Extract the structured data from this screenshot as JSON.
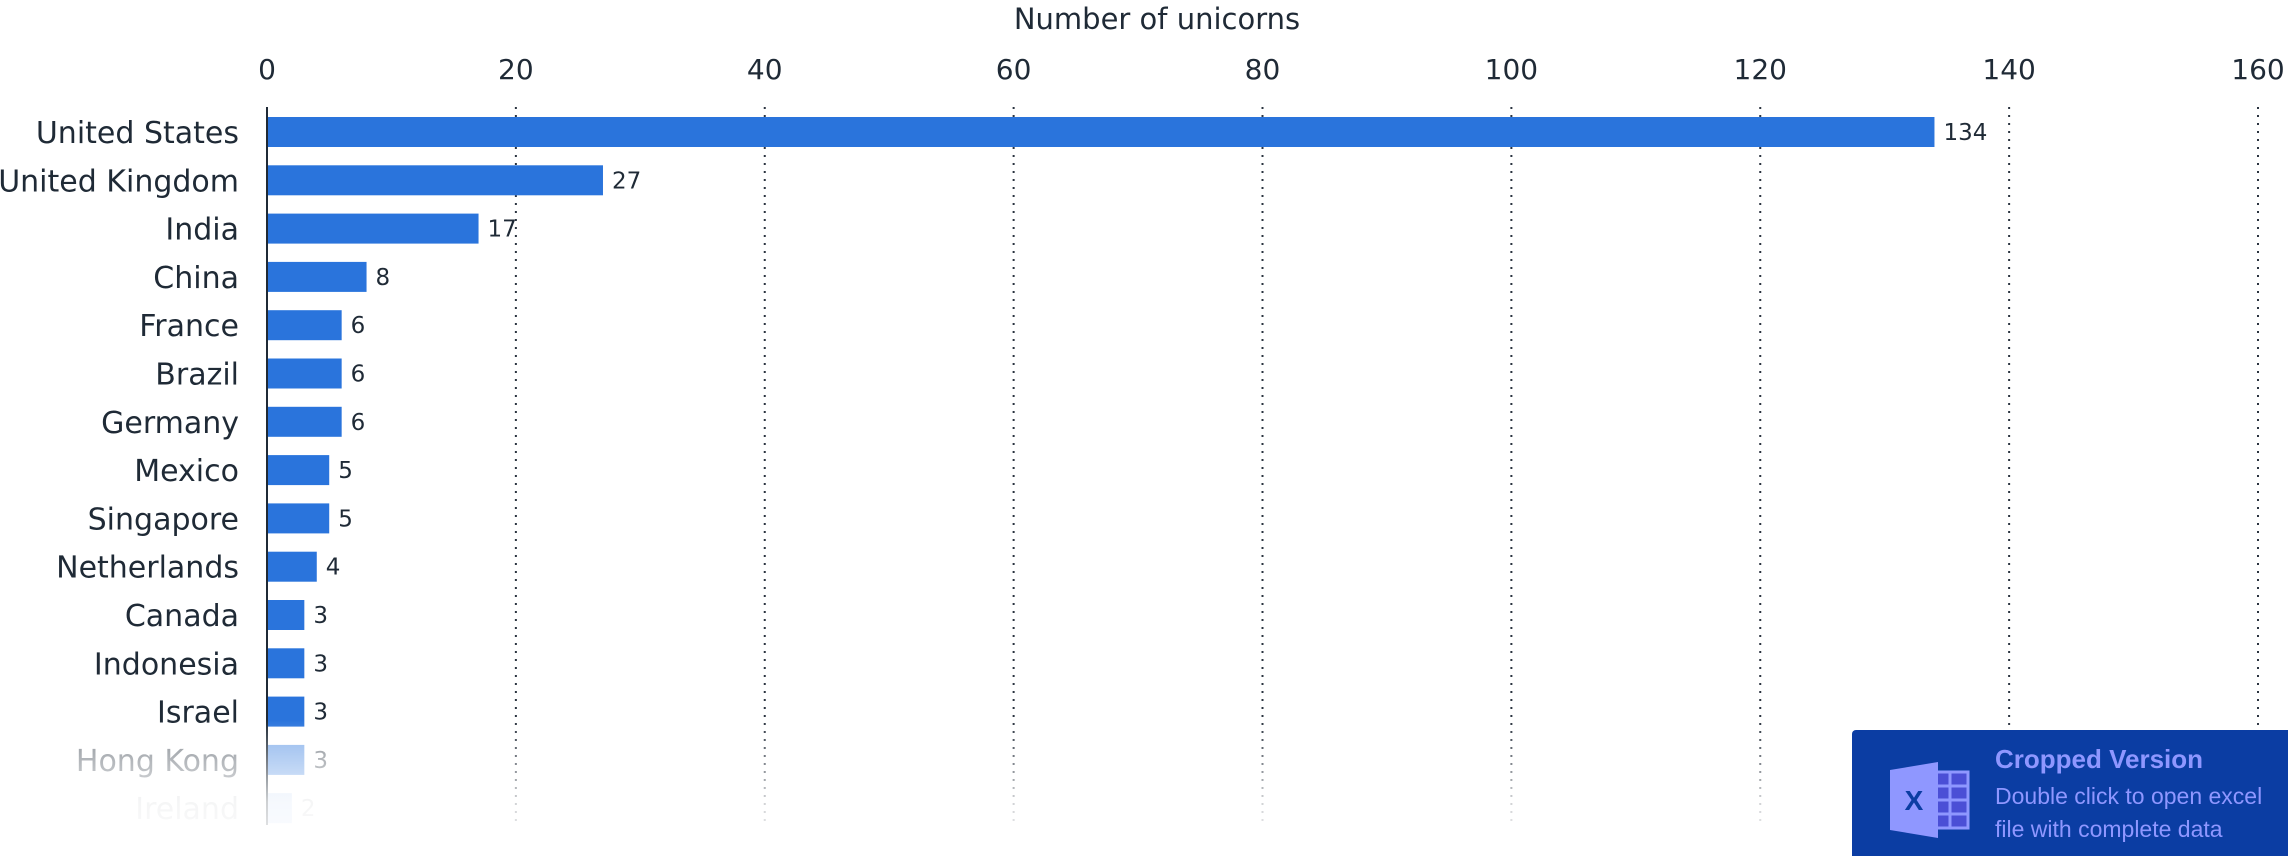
{
  "chart_data": {
    "type": "bar",
    "orientation": "horizontal",
    "title": "",
    "xlabel": "Number of unicorns",
    "ylabel": "",
    "xlim": [
      0,
      160
    ],
    "ticks": [
      "0",
      "20",
      "40",
      "60",
      "80",
      "100",
      "120",
      "140",
      "160"
    ],
    "axis_position": "top",
    "grid": "vertical dotted",
    "bar_color": "#2a74dc",
    "categories": [
      "United States",
      "United Kingdom",
      "India",
      "China",
      "France",
      "Brazil",
      "Germany",
      "Mexico",
      "Singapore",
      "Netherlands",
      "Canada",
      "Indonesia",
      "Israel",
      "Hong Kong",
      "Ireland"
    ],
    "values": [
      134,
      27,
      17,
      8,
      6,
      6,
      6,
      5,
      5,
      4,
      3,
      3,
      3,
      3,
      2
    ]
  },
  "banner": {
    "title": "Cropped Version",
    "line1": "Double click to open excel",
    "line2": "file with complete data",
    "icon": "excel-icon",
    "background": "#0b3da3",
    "text_color": "#8f97ff"
  }
}
